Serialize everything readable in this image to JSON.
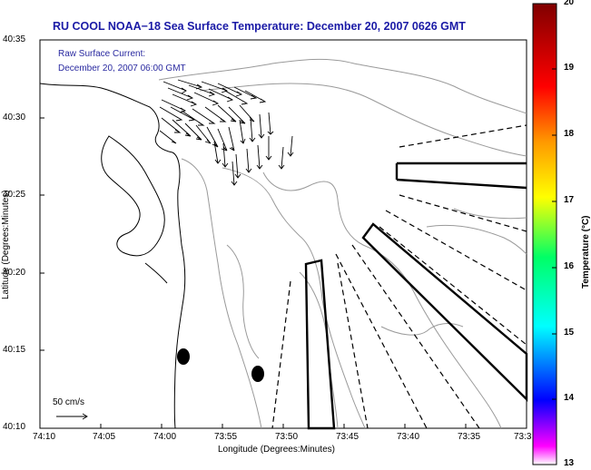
{
  "figure": {
    "title": "RU COOL  NOAA−18  Sea Surface Temperature:  December 20, 2007 0626 GMT",
    "annotation_line1": "Raw Surface Current:",
    "annotation_line2": "December 20, 2007 06:00 GMT",
    "scale_label": "50 cm/s",
    "xlabel": "Longitude (Degrees:Minutes)",
    "ylabel": "Latitude (Degrees:Minutes)",
    "x_ticks": [
      "74:10",
      "74:05",
      "74:00",
      "73:55",
      "73:50",
      "73:45",
      "73:40",
      "73:35",
      "73:3"
    ],
    "y_ticks": [
      "40:35",
      "40:30",
      "40:25",
      "40:20",
      "40:15",
      "40:10"
    ]
  },
  "colorbar": {
    "label": "Temperature (°C)",
    "ticks": [
      "20",
      "19",
      "18",
      "17",
      "16",
      "15",
      "14",
      "13"
    ],
    "colors": [
      "#ff00ff",
      "#0000ff",
      "#00ffff",
      "#00ff00",
      "#ffff00",
      "#ff8000",
      "#ff0000",
      "#800000"
    ]
  },
  "colors": {
    "title": "#1a1aa6",
    "land_outline": "#000000",
    "bathymetry": "#9a9a9a"
  }
}
